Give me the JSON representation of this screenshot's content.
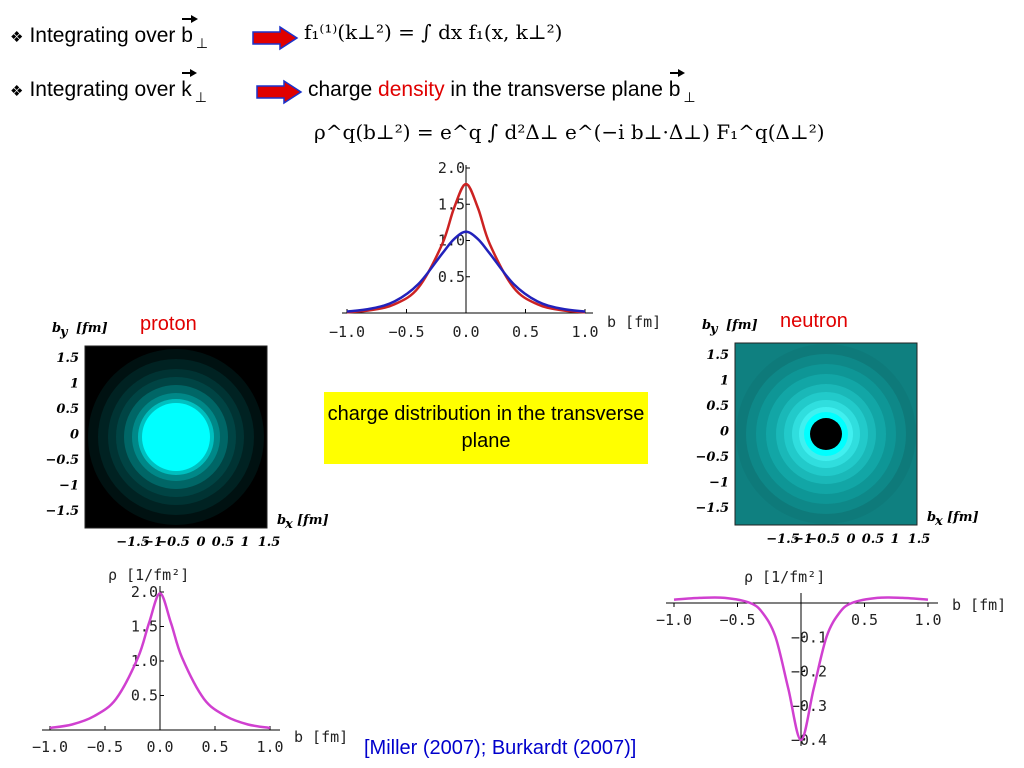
{
  "bullets": [
    {
      "glyph": "❖",
      "prefix": "Integrating over ",
      "vector": "b",
      "sub": "⊥"
    },
    {
      "glyph": "❖",
      "prefix": "Integrating over ",
      "vector": "k",
      "sub": "⊥"
    }
  ],
  "formula1": "f₁⁽¹⁾(k⊥²) = ∫ dx f₁(x, k⊥²)",
  "line2_text": {
    "before": "charge ",
    "highlight": "density",
    "after": " in the transverse plane ",
    "vector": "b",
    "sub": "⊥"
  },
  "formula2": "ρ^q(b⊥²) = e^q ∫ d²Δ⊥ e^(−i b⊥·Δ⊥) F₁^q(Δ⊥²)",
  "box_text": "charge distribution in the transverse plane",
  "citation": "[Miller (2007); Burkardt (2007)]",
  "colors": {
    "arrow": "#e00000",
    "arrow_outline": "#1a33cc",
    "red_curve": "#cc2222",
    "blue_curve": "#2222bb",
    "magenta_curve": "#d040d0",
    "cyan": "#00ffff",
    "teal": "#0a7c7c",
    "box": "#ffff00"
  },
  "proton_label": "proton",
  "neutron_label": "neutron",
  "density_plot": {
    "axis_x_label": "b [fm]",
    "labels": {
      "xticks": [
        "−1.0",
        "−0.5",
        "0.0",
        "0.5",
        "1.0"
      ],
      "yticks": [
        "0.5",
        "1.0",
        "1.5",
        "2.0"
      ]
    }
  },
  "maps": {
    "proton": {
      "by_label": "b",
      "by_sub": "y",
      "unit": "[fm]",
      "bx_label": "b",
      "bx_sub": "x",
      "yticks": [
        "1.5",
        "1",
        "0.5",
        "0",
        "−0.5",
        "−1",
        "−1.5"
      ],
      "xticks": [
        "−1.5",
        "−1",
        "−0.5",
        "0",
        "0.5",
        "1",
        "1.5"
      ]
    },
    "neutron": {
      "by_label": "b",
      "by_sub": "y",
      "unit": "[fm]",
      "bx_label": "b",
      "bx_sub": "x",
      "yticks": [
        "1.5",
        "1",
        "0.5",
        "0",
        "−0.5",
        "−1",
        "−1.5"
      ],
      "xticks": [
        "−1.5",
        "−1",
        "−0.5",
        "0",
        "0.5",
        "1",
        "1.5"
      ]
    }
  },
  "bottom_plots": {
    "proton": {
      "ylabel": "ρ [1/fm²]",
      "xlabel": "b [fm]",
      "xticks": [
        "−1.0",
        "−0.5",
        "0.0",
        "0.5",
        "1.0"
      ],
      "yticks": [
        "0.5",
        "1.0",
        "1.5",
        "2.0"
      ]
    },
    "neutron": {
      "ylabel": "ρ [1/fm²]",
      "xlabel": "b [fm]",
      "xticks": [
        "−1.0",
        "−0.5",
        "0.5",
        "1.0"
      ],
      "yticks": [
        "−0.1",
        "−0.2",
        "−0.3",
        "−0.4"
      ]
    }
  },
  "chart_data": [
    {
      "type": "line",
      "xlabel": "b [fm]",
      "xlim": [
        -1.0,
        1.0
      ],
      "ylim": [
        0,
        2.0
      ],
      "series": [
        {
          "values": [
            [
              -1.0,
              0.01
            ],
            [
              -0.8,
              0.04
            ],
            [
              -0.6,
              0.12
            ],
            [
              -0.4,
              0.35
            ],
            [
              -0.2,
              0.95
            ],
            [
              -0.1,
              1.45
            ],
            [
              0.0,
              1.78
            ],
            [
              0.1,
              1.45
            ],
            [
              0.2,
              0.95
            ],
            [
              0.4,
              0.35
            ],
            [
              0.6,
              0.12
            ],
            [
              0.8,
              0.04
            ],
            [
              1.0,
              0.01
            ]
          ]
        },
        {
          "values": [
            [
              -1.0,
              0.02
            ],
            [
              -0.8,
              0.06
            ],
            [
              -0.6,
              0.16
            ],
            [
              -0.4,
              0.4
            ],
            [
              -0.2,
              0.82
            ],
            [
              -0.1,
              1.02
            ],
            [
              0.0,
              1.12
            ],
            [
              0.1,
              1.02
            ],
            [
              0.2,
              0.82
            ],
            [
              0.4,
              0.4
            ],
            [
              0.6,
              0.16
            ],
            [
              0.8,
              0.06
            ],
            [
              1.0,
              0.02
            ]
          ]
        }
      ]
    },
    {
      "type": "line",
      "xlabel": "b [fm]",
      "ylabel": "ρ [1/fm²]",
      "xlim": [
        -1.0,
        1.0
      ],
      "ylim": [
        0,
        2.0
      ],
      "series": [
        {
          "values": [
            [
              -1.0,
              0.03
            ],
            [
              -0.8,
              0.08
            ],
            [
              -0.6,
              0.2
            ],
            [
              -0.4,
              0.45
            ],
            [
              -0.2,
              1.05
            ],
            [
              -0.1,
              1.55
            ],
            [
              0.0,
              1.98
            ],
            [
              0.1,
              1.55
            ],
            [
              0.2,
              1.05
            ],
            [
              0.4,
              0.45
            ],
            [
              0.6,
              0.2
            ],
            [
              0.8,
              0.08
            ],
            [
              1.0,
              0.03
            ]
          ]
        }
      ]
    },
    {
      "type": "line",
      "xlabel": "b [fm]",
      "ylabel": "ρ [1/fm²]",
      "xlim": [
        -1.0,
        1.0
      ],
      "ylim": [
        -0.4,
        0.02
      ],
      "series": [
        {
          "values": [
            [
              -1.0,
              0.01
            ],
            [
              -0.8,
              0.015
            ],
            [
              -0.6,
              0.015
            ],
            [
              -0.4,
              0.0
            ],
            [
              -0.3,
              -0.03
            ],
            [
              -0.2,
              -0.1
            ],
            [
              -0.1,
              -0.25
            ],
            [
              0.0,
              -0.4
            ],
            [
              0.1,
              -0.25
            ],
            [
              0.2,
              -0.1
            ],
            [
              0.3,
              -0.03
            ],
            [
              0.4,
              0.0
            ],
            [
              0.6,
              0.015
            ],
            [
              0.8,
              0.015
            ],
            [
              1.0,
              0.01
            ]
          ]
        }
      ]
    }
  ]
}
